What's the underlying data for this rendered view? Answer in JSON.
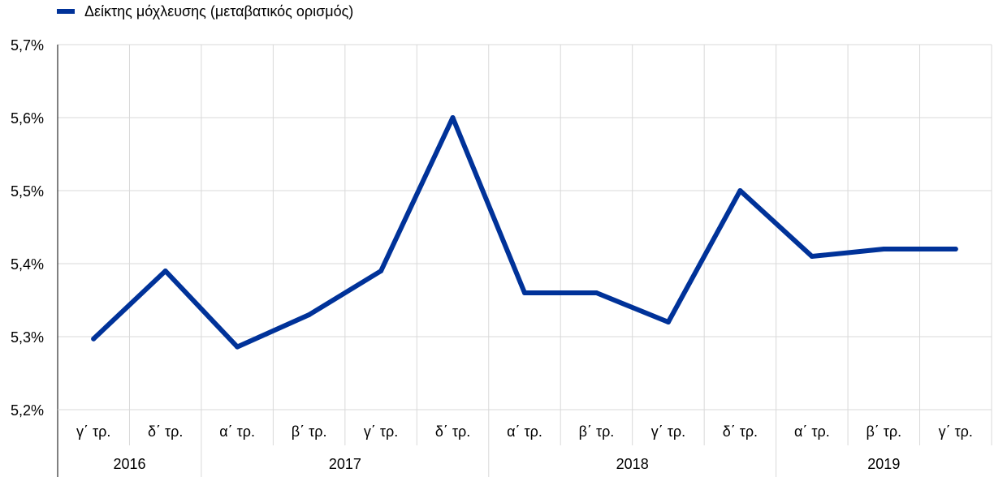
{
  "legend": {
    "label": "Δείκτης μόχλευσης (μεταβατικός ορισμός)",
    "color": "#003299"
  },
  "chart_data": {
    "type": "line",
    "categories": [
      "γ΄ τρ.",
      "δ΄ τρ.",
      "α΄ τρ.",
      "β΄ τρ.",
      "γ΄ τρ.",
      "δ΄ τρ.",
      "α΄ τρ.",
      "β΄ τρ.",
      "γ΄ τρ.",
      "δ΄ τρ.",
      "α΄ τρ.",
      "β΄ τρ.",
      "γ΄ τρ."
    ],
    "years": [
      {
        "label": "2016",
        "count": 2
      },
      {
        "label": "2017",
        "count": 4
      },
      {
        "label": "2018",
        "count": 4
      },
      {
        "label": "2019",
        "count": 3
      }
    ],
    "series": [
      {
        "name": "Δείκτης μόχλευσης (μεταβατικός ορισμός)",
        "color": "#003299",
        "values": [
          5.297,
          5.39,
          5.286,
          5.33,
          5.39,
          5.6,
          5.36,
          5.36,
          5.32,
          5.5,
          5.41,
          5.42,
          5.42
        ]
      }
    ],
    "ylim": [
      5.2,
      5.7
    ],
    "yticks": [
      5.2,
      5.3,
      5.4,
      5.5,
      5.6,
      5.7
    ],
    "ytick_labels": [
      "5,2%",
      "5,3%",
      "5,4%",
      "5,5%",
      "5,6%",
      "5,7%"
    ],
    "grid": true,
    "legend_position": "top-left"
  }
}
